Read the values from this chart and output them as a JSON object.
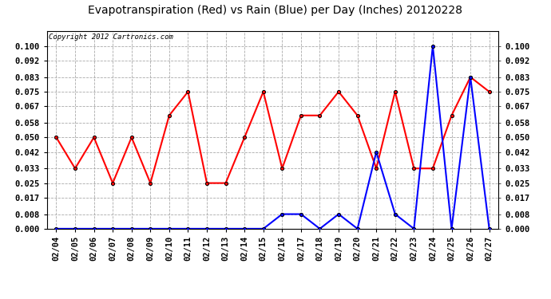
{
  "title": "Evapotranspiration (Red) vs Rain (Blue) per Day (Inches) 20120228",
  "copyright": "Copyright 2012 Cartronics.com",
  "dates": [
    "02/04",
    "02/05",
    "02/06",
    "02/07",
    "02/08",
    "02/09",
    "02/10",
    "02/11",
    "02/12",
    "02/13",
    "02/14",
    "02/15",
    "02/16",
    "02/17",
    "02/18",
    "02/19",
    "02/20",
    "02/21",
    "02/22",
    "02/23",
    "02/24",
    "02/25",
    "02/26",
    "02/27"
  ],
  "red_values": [
    0.05,
    0.033,
    0.05,
    0.025,
    0.05,
    0.025,
    0.062,
    0.075,
    0.025,
    0.025,
    0.05,
    0.075,
    0.033,
    0.062,
    0.062,
    0.075,
    0.062,
    0.033,
    0.075,
    0.033,
    0.033,
    0.062,
    0.083,
    0.075
  ],
  "blue_values": [
    0.0,
    0.0,
    0.0,
    0.0,
    0.0,
    0.0,
    0.0,
    0.0,
    0.0,
    0.0,
    0.0,
    0.0,
    0.008,
    0.008,
    0.0,
    0.008,
    0.0,
    0.042,
    0.008,
    0.0,
    0.1,
    0.0,
    0.083,
    0.0
  ],
  "red_color": "#ff0000",
  "blue_color": "#0000ff",
  "background_color": "#ffffff",
  "grid_color": "#aaaaaa",
  "ylim_min": 0.0,
  "ylim_max": 0.108,
  "yticks": [
    0.0,
    0.008,
    0.017,
    0.025,
    0.033,
    0.042,
    0.05,
    0.058,
    0.067,
    0.075,
    0.083,
    0.092,
    0.1
  ],
  "title_fontsize": 10,
  "copyright_fontsize": 6.5,
  "tick_fontsize": 7.5,
  "fig_width": 6.9,
  "fig_height": 3.75,
  "dpi": 100
}
